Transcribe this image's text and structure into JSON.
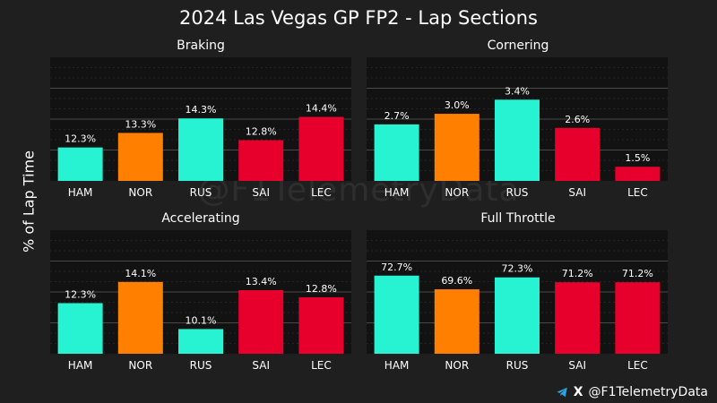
{
  "title": "2024 Las Vegas GP FP2 - Lap Sections",
  "ylabel": "% of Lap Time",
  "watermark": "@F1TelemetryData",
  "credit": {
    "handle": "@F1TelemetryData",
    "icons": [
      "telegram-icon",
      "x-icon"
    ]
  },
  "colors": {
    "teal": "#27f3d2",
    "orange": "#ff8000",
    "red": "#e8002d",
    "background": "#1f1f1f",
    "plot_bg": "#121212"
  },
  "chart_data": [
    {
      "type": "bar",
      "title": "Braking",
      "categories": [
        "HAM",
        "NOR",
        "RUS",
        "SAI",
        "LEC"
      ],
      "values": [
        12.3,
        13.3,
        14.3,
        12.8,
        14.4
      ],
      "labels": [
        "12.3%",
        "13.3%",
        "14.3%",
        "12.8%",
        "14.4%"
      ],
      "bar_colors": [
        "#27f3d2",
        "#ff8000",
        "#27f3d2",
        "#e8002d",
        "#e8002d"
      ],
      "ylim": [
        10.0,
        18.5
      ],
      "grid": true
    },
    {
      "type": "bar",
      "title": "Cornering",
      "categories": [
        "HAM",
        "NOR",
        "RUS",
        "SAI",
        "LEC"
      ],
      "values": [
        2.7,
        3.0,
        3.4,
        2.6,
        1.5
      ],
      "labels": [
        "2.7%",
        "3.0%",
        "3.4%",
        "2.6%",
        "1.5%"
      ],
      "bar_colors": [
        "#27f3d2",
        "#ff8000",
        "#27f3d2",
        "#e8002d",
        "#e8002d"
      ],
      "ylim": [
        1.1,
        4.6
      ],
      "grid": true
    },
    {
      "type": "bar",
      "title": "Accelerating",
      "categories": [
        "HAM",
        "NOR",
        "RUS",
        "SAI",
        "LEC"
      ],
      "values": [
        12.3,
        14.1,
        10.1,
        13.4,
        12.8
      ],
      "labels": [
        "12.3%",
        "14.1%",
        "10.1%",
        "13.4%",
        "12.8%"
      ],
      "bar_colors": [
        "#27f3d2",
        "#ff8000",
        "#27f3d2",
        "#e8002d",
        "#e8002d"
      ],
      "ylim": [
        8.0,
        18.5
      ],
      "grid": true
    },
    {
      "type": "bar",
      "title": "Full Throttle",
      "categories": [
        "HAM",
        "NOR",
        "RUS",
        "SAI",
        "LEC"
      ],
      "values": [
        72.7,
        69.6,
        72.3,
        71.2,
        71.2
      ],
      "labels": [
        "72.7%",
        "69.6%",
        "72.3%",
        "71.2%",
        "71.2%"
      ],
      "bar_colors": [
        "#27f3d2",
        "#ff8000",
        "#27f3d2",
        "#e8002d",
        "#e8002d"
      ],
      "ylim": [
        55.0,
        83.0
      ],
      "grid": true
    }
  ]
}
